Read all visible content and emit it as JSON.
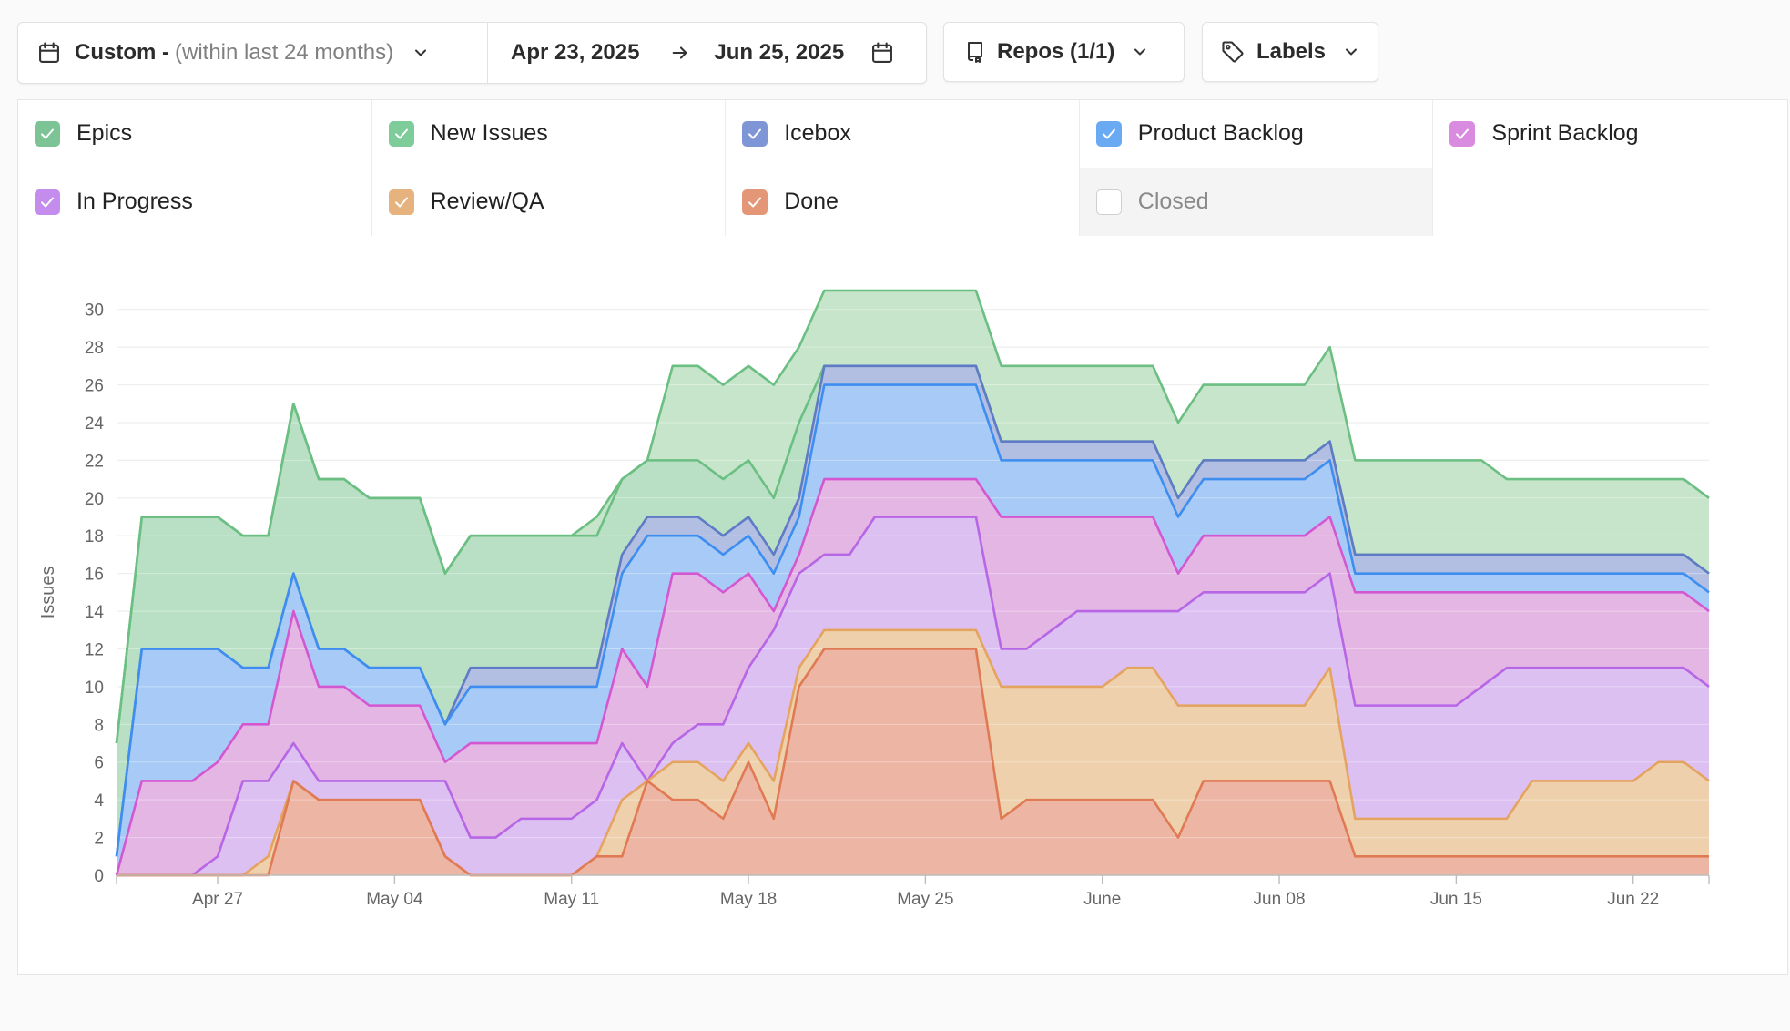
{
  "toolbar": {
    "date_range": {
      "preset_label": "Custom -",
      "preset_range": "(within last 24 months)",
      "start": "Apr 23, 2025",
      "end": "Jun 25, 2025"
    },
    "repos_label": "Repos (1/1)",
    "labels_label": "Labels"
  },
  "legend": [
    {
      "name": "Epics",
      "checked": true,
      "color": "#7cc495"
    },
    {
      "name": "New Issues",
      "checked": true,
      "color": "#7fcc9b"
    },
    {
      "name": "Icebox",
      "checked": true,
      "color": "#7e95d6"
    },
    {
      "name": "Product Backlog",
      "checked": true,
      "color": "#6aaaf2"
    },
    {
      "name": "Sprint Backlog",
      "checked": true,
      "color": "#d98be0"
    },
    {
      "name": "In Progress",
      "checked": true,
      "color": "#c48ced"
    },
    {
      "name": "Review/QA",
      "checked": true,
      "color": "#e6b27e"
    },
    {
      "name": "Done",
      "checked": true,
      "color": "#e39777"
    },
    {
      "name": "Closed",
      "checked": false,
      "color": "#dddddd"
    }
  ],
  "chart_data": {
    "type": "area",
    "stacked": true,
    "ylabel": "Issues",
    "xlabel": "",
    "ylim": [
      0,
      31
    ],
    "yticks": [
      0,
      2,
      4,
      6,
      8,
      10,
      12,
      14,
      16,
      18,
      20,
      22,
      24,
      26,
      28,
      30
    ],
    "x_start": "Apr 23",
    "x_end": "Jun 25",
    "x_ticks": [
      {
        "label": "Apr 27",
        "day": 4
      },
      {
        "label": "May 04",
        "day": 11
      },
      {
        "label": "May 11",
        "day": 18
      },
      {
        "label": "May 18",
        "day": 25
      },
      {
        "label": "May 25",
        "day": 32
      },
      {
        "label": "June",
        "day": 39
      },
      {
        "label": "Jun 08",
        "day": 46
      },
      {
        "label": "Jun 15",
        "day": 53
      },
      {
        "label": "Jun 22",
        "day": 60
      }
    ],
    "cumulative_series": [
      {
        "name": "Done",
        "color": "#e07a55",
        "fill": "#edb5a3",
        "values": [
          0,
          0,
          0,
          0,
          0,
          0,
          0,
          5,
          4,
          4,
          4,
          4,
          4,
          1,
          0,
          0,
          0,
          0,
          0,
          1,
          1,
          5,
          4,
          4,
          3,
          6,
          3,
          10,
          12,
          12,
          12,
          12,
          12,
          12,
          12,
          3,
          4,
          4,
          4,
          4,
          4,
          4,
          2,
          5,
          5,
          5,
          5,
          5,
          5,
          1,
          1,
          1,
          1,
          1,
          1,
          1,
          1,
          1,
          1,
          1,
          1,
          1,
          1,
          1
        ]
      },
      {
        "name": "Review/QA",
        "color": "#e5a360",
        "fill": "#eed1ac",
        "values": [
          0,
          0,
          0,
          0,
          0,
          0,
          1,
          5,
          4,
          4,
          4,
          4,
          4,
          1,
          0,
          0,
          0,
          0,
          0,
          1,
          4,
          5,
          6,
          6,
          5,
          7,
          5,
          11,
          13,
          13,
          13,
          13,
          13,
          13,
          13,
          10,
          10,
          10,
          10,
          10,
          11,
          11,
          9,
          9,
          9,
          9,
          9,
          9,
          11,
          3,
          3,
          3,
          3,
          3,
          3,
          3,
          5,
          5,
          5,
          5,
          5,
          6,
          6,
          5
        ]
      },
      {
        "name": "In Progress",
        "color": "#b766e6",
        "fill": "#dcc0f2",
        "values": [
          0,
          0,
          0,
          0,
          1,
          5,
          5,
          7,
          5,
          5,
          5,
          5,
          5,
          5,
          2,
          2,
          3,
          3,
          3,
          4,
          7,
          5,
          7,
          8,
          8,
          11,
          13,
          16,
          17,
          17,
          19,
          19,
          19,
          19,
          19,
          12,
          12,
          13,
          14,
          14,
          14,
          14,
          14,
          15,
          15,
          15,
          15,
          15,
          16,
          9,
          9,
          9,
          9,
          9,
          10,
          11,
          11,
          11,
          11,
          11,
          11,
          11,
          11,
          10
        ]
      },
      {
        "name": "Sprint Backlog",
        "color": "#d457d2",
        "fill": "#e4b6e4",
        "values": [
          0,
          5,
          5,
          5,
          6,
          8,
          8,
          14,
          10,
          10,
          9,
          9,
          9,
          6,
          7,
          7,
          7,
          7,
          7,
          7,
          12,
          10,
          16,
          16,
          15,
          16,
          14,
          17,
          21,
          21,
          21,
          21,
          21,
          21,
          21,
          19,
          19,
          19,
          19,
          19,
          19,
          19,
          16,
          18,
          18,
          18,
          18,
          18,
          19,
          15,
          15,
          15,
          15,
          15,
          15,
          15,
          15,
          15,
          15,
          15,
          15,
          15,
          15,
          14
        ]
      },
      {
        "name": "Product Backlog",
        "color": "#3d8ef0",
        "fill": "#a7cbf6",
        "values": [
          1,
          12,
          12,
          12,
          12,
          11,
          11,
          16,
          12,
          12,
          11,
          11,
          11,
          8,
          10,
          10,
          10,
          10,
          10,
          10,
          16,
          18,
          18,
          18,
          17,
          18,
          16,
          19,
          26,
          26,
          26,
          26,
          26,
          26,
          26,
          22,
          22,
          22,
          22,
          22,
          22,
          22,
          19,
          21,
          21,
          21,
          21,
          21,
          22,
          16,
          16,
          16,
          16,
          16,
          16,
          16,
          16,
          16,
          16,
          16,
          16,
          16,
          16,
          15
        ]
      },
      {
        "name": "Icebox",
        "color": "#5f7bc6",
        "fill": "#b2bfe3",
        "values": [
          1,
          12,
          12,
          12,
          12,
          11,
          11,
          16,
          12,
          12,
          11,
          11,
          11,
          8,
          11,
          11,
          11,
          11,
          11,
          11,
          17,
          19,
          19,
          19,
          18,
          19,
          17,
          20,
          27,
          27,
          27,
          27,
          27,
          27,
          27,
          23,
          23,
          23,
          23,
          23,
          23,
          23,
          20,
          22,
          22,
          22,
          22,
          22,
          23,
          17,
          17,
          17,
          17,
          17,
          17,
          17,
          17,
          17,
          17,
          17,
          17,
          17,
          17,
          16
        ]
      },
      {
        "name": "New Issues",
        "color": "#6bbf82",
        "fill": "#b9e0c5",
        "values": [
          7,
          19,
          19,
          19,
          19,
          18,
          18,
          25,
          21,
          21,
          20,
          20,
          20,
          16,
          18,
          18,
          18,
          18,
          18,
          18,
          21,
          22,
          22,
          22,
          21,
          22,
          20,
          24,
          27,
          27,
          27,
          27,
          27,
          27,
          27,
          23,
          23,
          23,
          23,
          23,
          23,
          23,
          20,
          22,
          22,
          22,
          22,
          22,
          23,
          17,
          17,
          17,
          17,
          17,
          17,
          17,
          17,
          17,
          17,
          17,
          17,
          17,
          17,
          16
        ]
      },
      {
        "name": "Epics",
        "color": "#6bbf82",
        "fill": "#c6e5ca",
        "values": [
          7,
          19,
          19,
          19,
          19,
          18,
          18,
          25,
          21,
          21,
          20,
          20,
          20,
          16,
          18,
          18,
          18,
          18,
          18,
          19,
          21,
          22,
          27,
          27,
          26,
          27,
          26,
          28,
          31,
          31,
          31,
          31,
          31,
          31,
          31,
          27,
          27,
          27,
          27,
          27,
          27,
          27,
          24,
          26,
          26,
          26,
          26,
          26,
          28,
          22,
          22,
          22,
          22,
          22,
          22,
          21,
          21,
          21,
          21,
          21,
          21,
          21,
          21,
          20
        ]
      }
    ]
  }
}
